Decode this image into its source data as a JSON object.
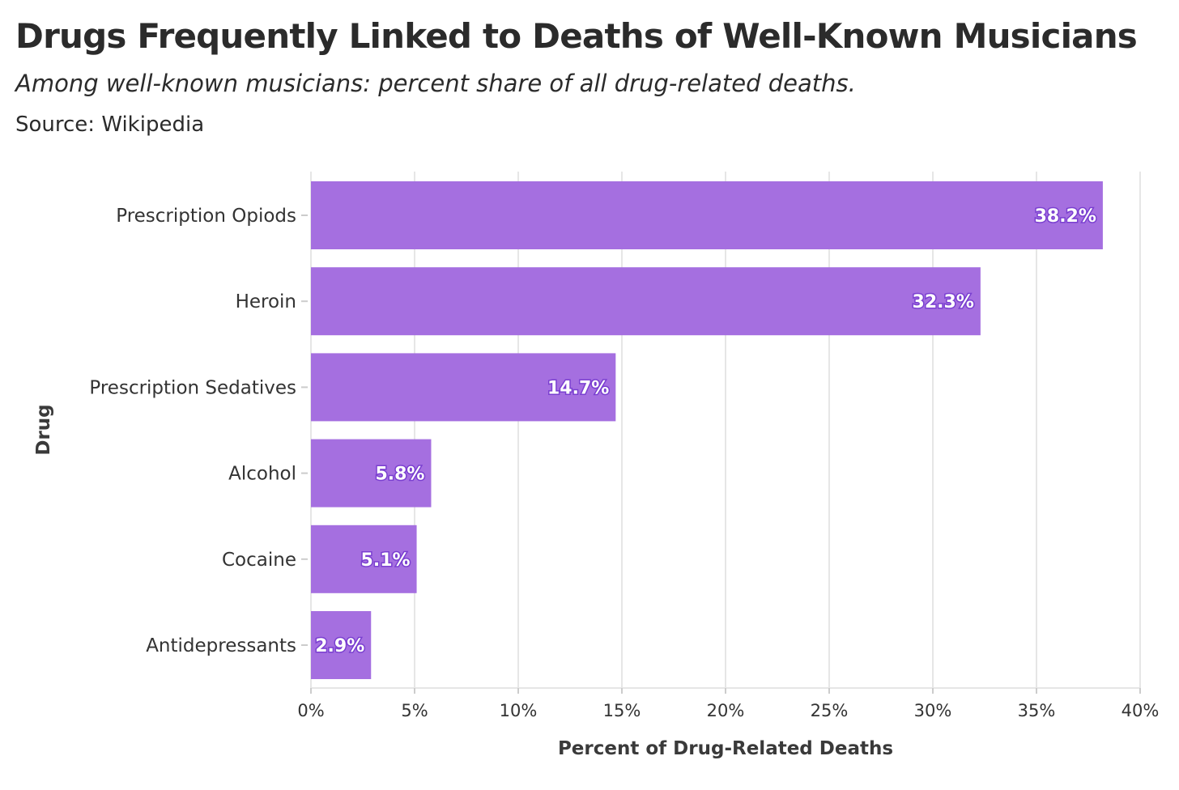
{
  "chart_data": {
    "type": "bar",
    "orientation": "horizontal",
    "title": "Drugs Frequently Linked to Deaths of Well-Known Musicians",
    "subtitle": "Among well-known musicians: percent share of all drug-related deaths.",
    "source": "Source: Wikipedia",
    "xlabel": "Percent of Drug-Related Deaths",
    "ylabel": "Drug",
    "categories": [
      "Prescription Opiods",
      "Heroin",
      "Prescription Sedatives",
      "Alcohol",
      "Cocaine",
      "Antidepressants"
    ],
    "values": [
      38.2,
      32.3,
      14.7,
      5.8,
      5.1,
      2.9
    ],
    "data_labels": [
      "38.2%",
      "32.3%",
      "14.7%",
      "5.8%",
      "5.1%",
      "2.9%"
    ],
    "xlim": [
      0,
      40
    ],
    "xticks": [
      0,
      5,
      10,
      15,
      20,
      25,
      30,
      35,
      40
    ],
    "xtick_labels": [
      "0%",
      "5%",
      "10%",
      "15%",
      "20%",
      "25%",
      "30%",
      "35%",
      "40%"
    ],
    "grid": true,
    "bar_color": "#a56fe0",
    "label_outline_color": "#7a3fd0",
    "grid_color": "#e6e6e6"
  }
}
